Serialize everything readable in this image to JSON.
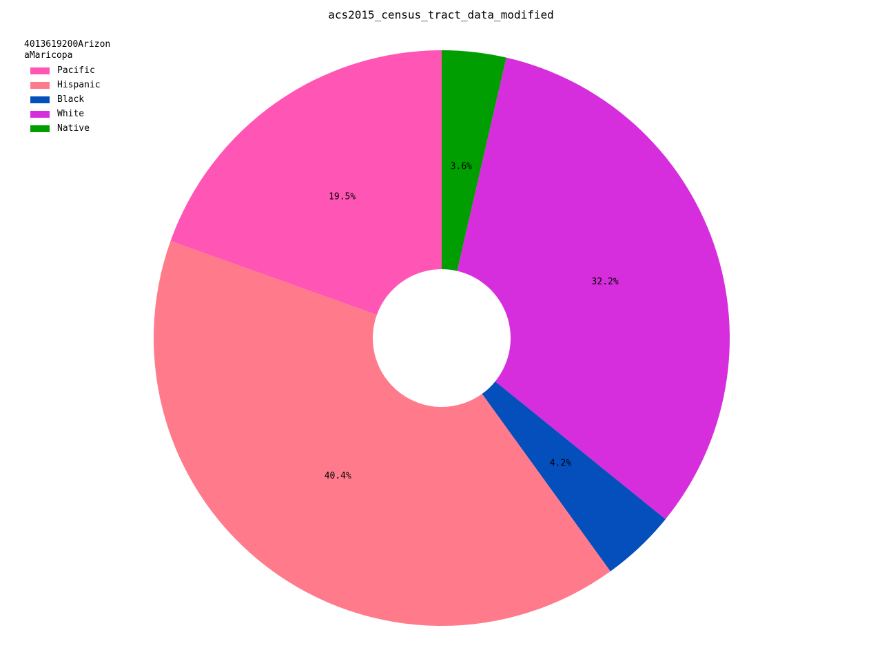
{
  "chart_data": {
    "type": "pie",
    "title": "acs2015_census_tract_data_modified",
    "legend_title": "4013619200ArizonaMaricopa",
    "legend_placement": "top-left",
    "start_angle_deg": 90,
    "direction": "clockwise",
    "donut": true,
    "slices": [
      {
        "label": "Native",
        "value": 3.6,
        "pct_label": "3.6%",
        "color": "#009e00"
      },
      {
        "label": "White",
        "value": 32.2,
        "pct_label": "32.2%",
        "color": "#d62ddd"
      },
      {
        "label": "Black",
        "value": 4.2,
        "pct_label": "4.2%",
        "color": "#044fbc"
      },
      {
        "label": "Hispanic",
        "value": 40.4,
        "pct_label": "40.4%",
        "color": "#ff7b8b"
      },
      {
        "label": "Pacific",
        "value": 19.5,
        "pct_label": "19.5%",
        "color": "#ff55b4"
      }
    ],
    "legend_order": [
      "Pacific",
      "Hispanic",
      "Black",
      "White",
      "Native"
    ]
  }
}
